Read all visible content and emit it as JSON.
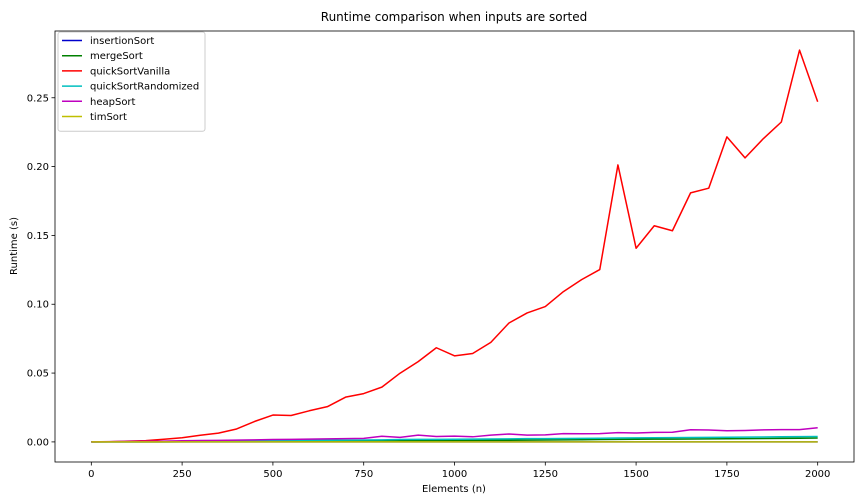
{
  "chart_data": {
    "type": "line",
    "title": "Runtime comparison when inputs are sorted",
    "xlabel": "Elements (n)",
    "ylabel": "Runtime (s)",
    "xlim": [
      -100,
      2100
    ],
    "ylim": [
      -0.0146,
      0.2985
    ],
    "xticks": [
      0,
      250,
      500,
      750,
      1000,
      1250,
      1500,
      1750,
      2000
    ],
    "xtick_labels": [
      "0",
      "250",
      "500",
      "750",
      "1000",
      "1250",
      "1500",
      "1750",
      "2000"
    ],
    "yticks": [
      0.0,
      0.05,
      0.1,
      0.15,
      0.2,
      0.25
    ],
    "ytick_labels": [
      "0.00",
      "0.05",
      "0.10",
      "0.15",
      "0.20",
      "0.25"
    ],
    "grid": false,
    "legend_position": "top-left",
    "x": [
      0,
      50,
      100,
      150,
      200,
      250,
      300,
      350,
      400,
      450,
      500,
      550,
      600,
      650,
      700,
      750,
      800,
      850,
      900,
      950,
      1000,
      1050,
      1100,
      1150,
      1200,
      1250,
      1300,
      1350,
      1400,
      1450,
      1500,
      1550,
      1600,
      1650,
      1700,
      1750,
      1800,
      1850,
      1900,
      1950,
      2000
    ],
    "series": [
      {
        "name": "insertionSort",
        "color": "#0000cc",
        "values": [
          0.0,
          0.0,
          0.0,
          0.0,
          0.0,
          0.0,
          0.0,
          0.0,
          0.0,
          0.0,
          0.0,
          0.0,
          0.0,
          0.0,
          0.0,
          0.0,
          0.0,
          0.0,
          0.0,
          0.0,
          0.0,
          0.0,
          0.0,
          0.0,
          0.0,
          0.0,
          0.0,
          0.0,
          0.0,
          0.0,
          0.0,
          0.0,
          0.0,
          0.0,
          0.0,
          0.0,
          0.0,
          0.0,
          0.0,
          0.0,
          0.0
        ]
      },
      {
        "name": "mergeSort",
        "color": "#008000",
        "values": [
          0.0,
          0.0,
          0.0,
          0.0,
          0.0,
          0.0001,
          0.0001,
          0.0002,
          0.0002,
          0.0003,
          0.0004,
          0.0004,
          0.0005,
          0.0005,
          0.0006,
          0.0007,
          0.0007,
          0.0008,
          0.0009,
          0.0009,
          0.001,
          0.0011,
          0.0012,
          0.0012,
          0.0013,
          0.0014,
          0.0015,
          0.0016,
          0.0017,
          0.0018,
          0.0019,
          0.002,
          0.002,
          0.0021,
          0.0022,
          0.0023,
          0.0024,
          0.0025,
          0.0026,
          0.0027,
          0.0028
        ]
      },
      {
        "name": "quickSortVanilla",
        "color": "#ff0000",
        "values": [
          0.0,
          0.0001,
          0.0006,
          0.0009,
          0.0019,
          0.003,
          0.0048,
          0.0064,
          0.0094,
          0.0149,
          0.0195,
          0.0192,
          0.0226,
          0.0256,
          0.0325,
          0.0351,
          0.0398,
          0.0499,
          0.0583,
          0.0684,
          0.0625,
          0.0642,
          0.0723,
          0.0864,
          0.0937,
          0.0983,
          0.1092,
          0.1179,
          0.1252,
          0.2012,
          0.1407,
          0.157,
          0.1534,
          0.1809,
          0.1843,
          0.2216,
          0.2063,
          0.2202,
          0.2324,
          0.2846,
          0.2471
        ]
      },
      {
        "name": "quickSortRandomized",
        "color": "#00bfbf",
        "values": [
          0.0,
          0.0001,
          0.0002,
          0.0003,
          0.0004,
          0.0005,
          0.0006,
          0.0007,
          0.0008,
          0.0009,
          0.001,
          0.0011,
          0.0012,
          0.0012,
          0.0013,
          0.0014,
          0.0015,
          0.0017,
          0.0018,
          0.0018,
          0.0019,
          0.002,
          0.0021,
          0.0022,
          0.0024,
          0.0024,
          0.0025,
          0.0026,
          0.0027,
          0.0028,
          0.0029,
          0.003,
          0.0031,
          0.0032,
          0.0033,
          0.0034,
          0.0035,
          0.0036,
          0.0037,
          0.0038,
          0.0039
        ]
      },
      {
        "name": "heapSort",
        "color": "#bf00bf",
        "values": [
          0.0,
          0.0002,
          0.0004,
          0.0005,
          0.0006,
          0.0008,
          0.001,
          0.0011,
          0.0013,
          0.0015,
          0.0017,
          0.0018,
          0.002,
          0.0022,
          0.0024,
          0.0026,
          0.0041,
          0.0033,
          0.0049,
          0.0039,
          0.0042,
          0.0037,
          0.0049,
          0.0057,
          0.0049,
          0.0051,
          0.006,
          0.0059,
          0.006,
          0.0067,
          0.0065,
          0.0069,
          0.007,
          0.0088,
          0.0086,
          0.0081,
          0.0083,
          0.0087,
          0.0089,
          0.0089,
          0.0103
        ]
      },
      {
        "name": "timSort",
        "color": "#bfbf00",
        "values": [
          0.0,
          0.0,
          0.0,
          0.0,
          0.0,
          0.0,
          0.0,
          0.0,
          0.0,
          0.0,
          0.0,
          0.0,
          0.0,
          0.0,
          0.0,
          0.0,
          0.0,
          0.0,
          0.0,
          0.0,
          0.0,
          0.0,
          0.0,
          0.0,
          0.0,
          0.0,
          0.0,
          0.0,
          0.0,
          0.0,
          0.0,
          0.0,
          0.0,
          0.0,
          0.0,
          0.0,
          0.0,
          0.0,
          0.0,
          0.0,
          0.0
        ]
      }
    ]
  }
}
